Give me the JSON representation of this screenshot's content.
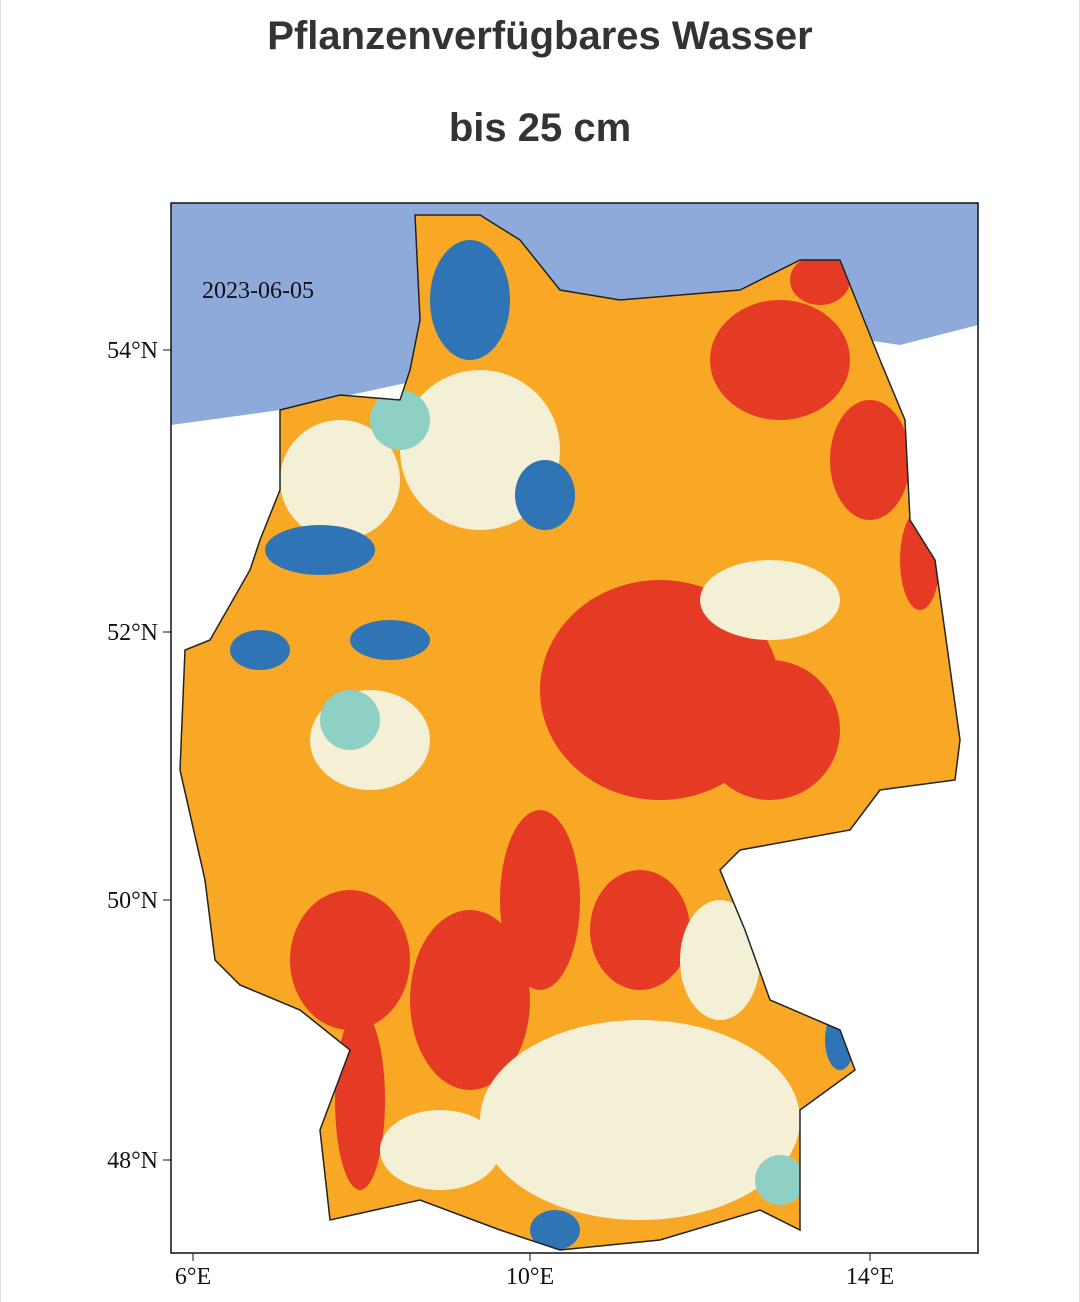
{
  "header": {
    "title": "Pflanzenverfügbares Wasser",
    "subtitle": "bis 25 cm"
  },
  "map": {
    "date": "2023-06-05",
    "lat_labels": [
      "54°N",
      "52°N",
      "50°N",
      "48°N"
    ],
    "lon_labels": [
      "6°E",
      "10°E",
      "14°E"
    ]
  }
}
